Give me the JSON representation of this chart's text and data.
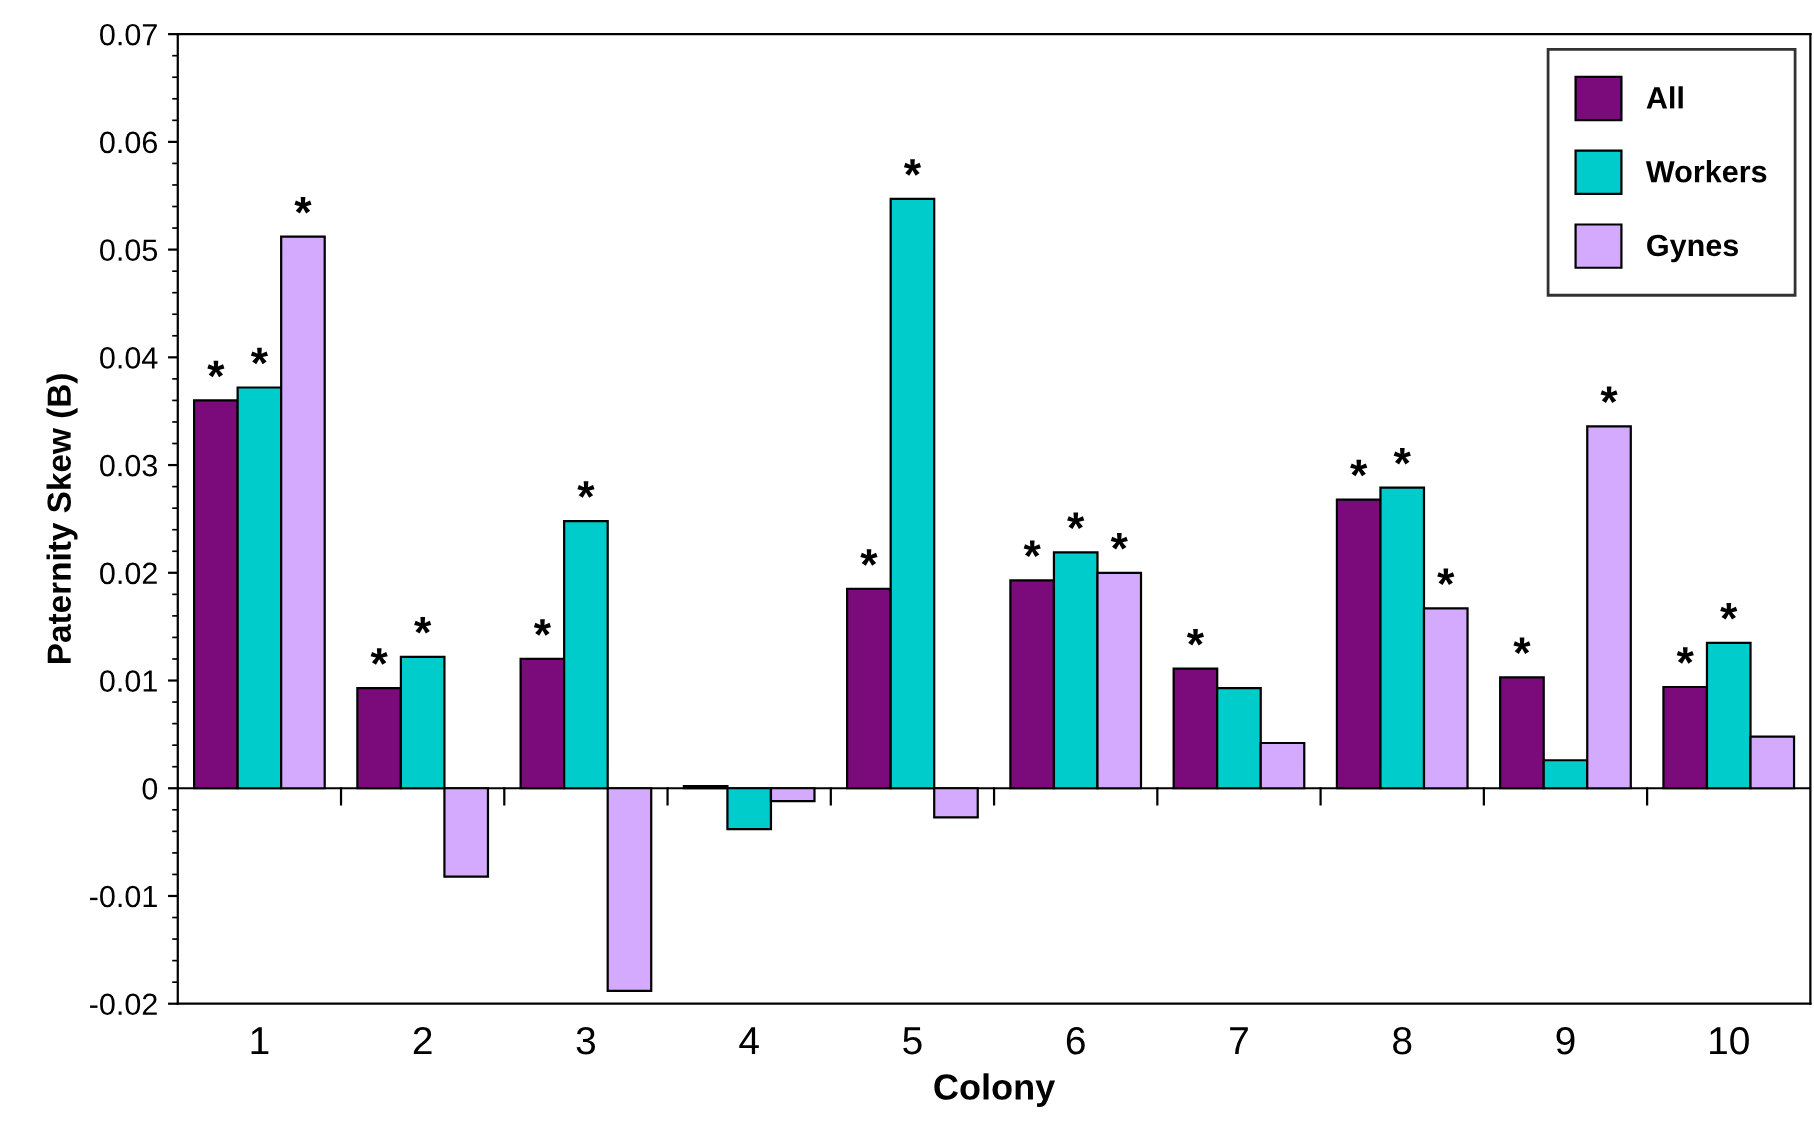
{
  "chart_data": {
    "type": "bar",
    "xlabel": "Colony",
    "ylabel": "Paternity Skew (B)",
    "categories": [
      "1",
      "2",
      "3",
      "4",
      "5",
      "6",
      "7",
      "8",
      "9",
      "10"
    ],
    "series": [
      {
        "name": "All",
        "color": "#7b0a7b",
        "values": [
          0.036,
          0.0093,
          0.012,
          0.0002,
          0.0185,
          0.0193,
          0.0111,
          0.0268,
          0.0103,
          0.0094
        ],
        "value_labels": [
          "*",
          "*",
          "*",
          null,
          "*",
          "*",
          "*",
          "*",
          "*",
          "*"
        ]
      },
      {
        "name": "Workers",
        "color": "#00cccc",
        "values": [
          0.0372,
          0.0122,
          0.0248,
          -0.0038,
          0.0547,
          0.0219,
          0.0093,
          0.0279,
          0.0026,
          0.0135
        ],
        "value_labels": [
          "*",
          "*",
          "*",
          null,
          "*",
          "*",
          null,
          "*",
          null,
          "*"
        ]
      },
      {
        "name": "Gynes",
        "color": "#d4aaff",
        "values": [
          0.0512,
          -0.0082,
          -0.0188,
          -0.0012,
          -0.0027,
          0.02,
          0.0042,
          0.0167,
          0.0336,
          0.0048
        ],
        "value_labels": [
          "*",
          null,
          null,
          null,
          null,
          "*",
          null,
          "*",
          "*",
          null
        ]
      }
    ],
    "ylim": [
      -0.02,
      0.07
    ],
    "yticks": [
      -0.02,
      -0.01,
      0,
      0.01,
      0.02,
      0.03,
      0.04,
      0.05,
      0.06,
      0.07
    ],
    "legend": "top right"
  }
}
